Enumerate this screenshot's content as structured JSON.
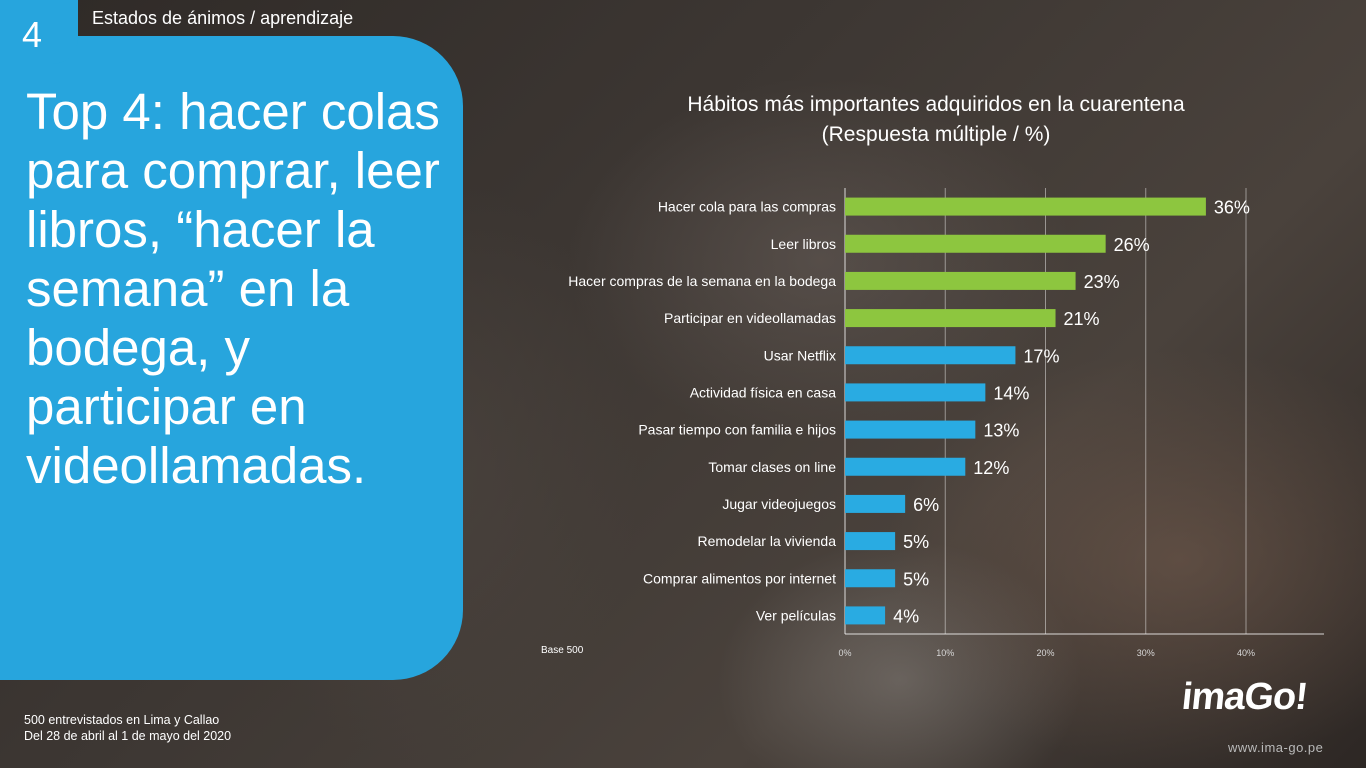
{
  "slide": {
    "number": "4",
    "section": "Estados de ánimos / aprendizaje",
    "headline": "Top 4: hacer colas para comprar, leer libros, “hacer la semana” en la bodega, y participar en videollamadas.",
    "footnote_line1": "500 entrevistados en Lima y Callao",
    "footnote_line2": "Del 28 de abril al 1 de mayo del 2020",
    "logo": "imaGo!",
    "url": "www.ima-go.pe"
  },
  "chart_data": {
    "type": "bar",
    "orientation": "horizontal",
    "title_line1": "Hábitos más importantes adquiridos en la cuarentena",
    "title_line2": "(Respuesta múltiple / %)",
    "base_label": "Base 500",
    "categories": [
      "Hacer cola para las compras",
      "Leer libros",
      "Hacer compras de la semana en la bodega",
      "Participar en videollamadas",
      "Usar Netflix",
      "Actividad física en casa",
      "Pasar tiempo con familia e hijos",
      "Tomar clases on line",
      "Jugar videojuegos",
      "Remodelar la vivienda",
      "Comprar alimentos por internet",
      "Ver películas"
    ],
    "values": [
      36,
      26,
      23,
      21,
      17,
      14,
      13,
      12,
      6,
      5,
      5,
      4
    ],
    "value_labels": [
      "36%",
      "26%",
      "23%",
      "21%",
      "17%",
      "14%",
      "13%",
      "12%",
      "6%",
      "5%",
      "5%",
      "4%"
    ],
    "xlim": [
      0,
      40
    ],
    "xticks": [
      0,
      10,
      20,
      30,
      40
    ],
    "xtick_labels": [
      "0%",
      "10%",
      "20%",
      "30%",
      "40%"
    ],
    "grid": true,
    "colors": {
      "top4": "#8dc63f",
      "rest": "#29abe2"
    },
    "top_highlight_count": 4
  }
}
